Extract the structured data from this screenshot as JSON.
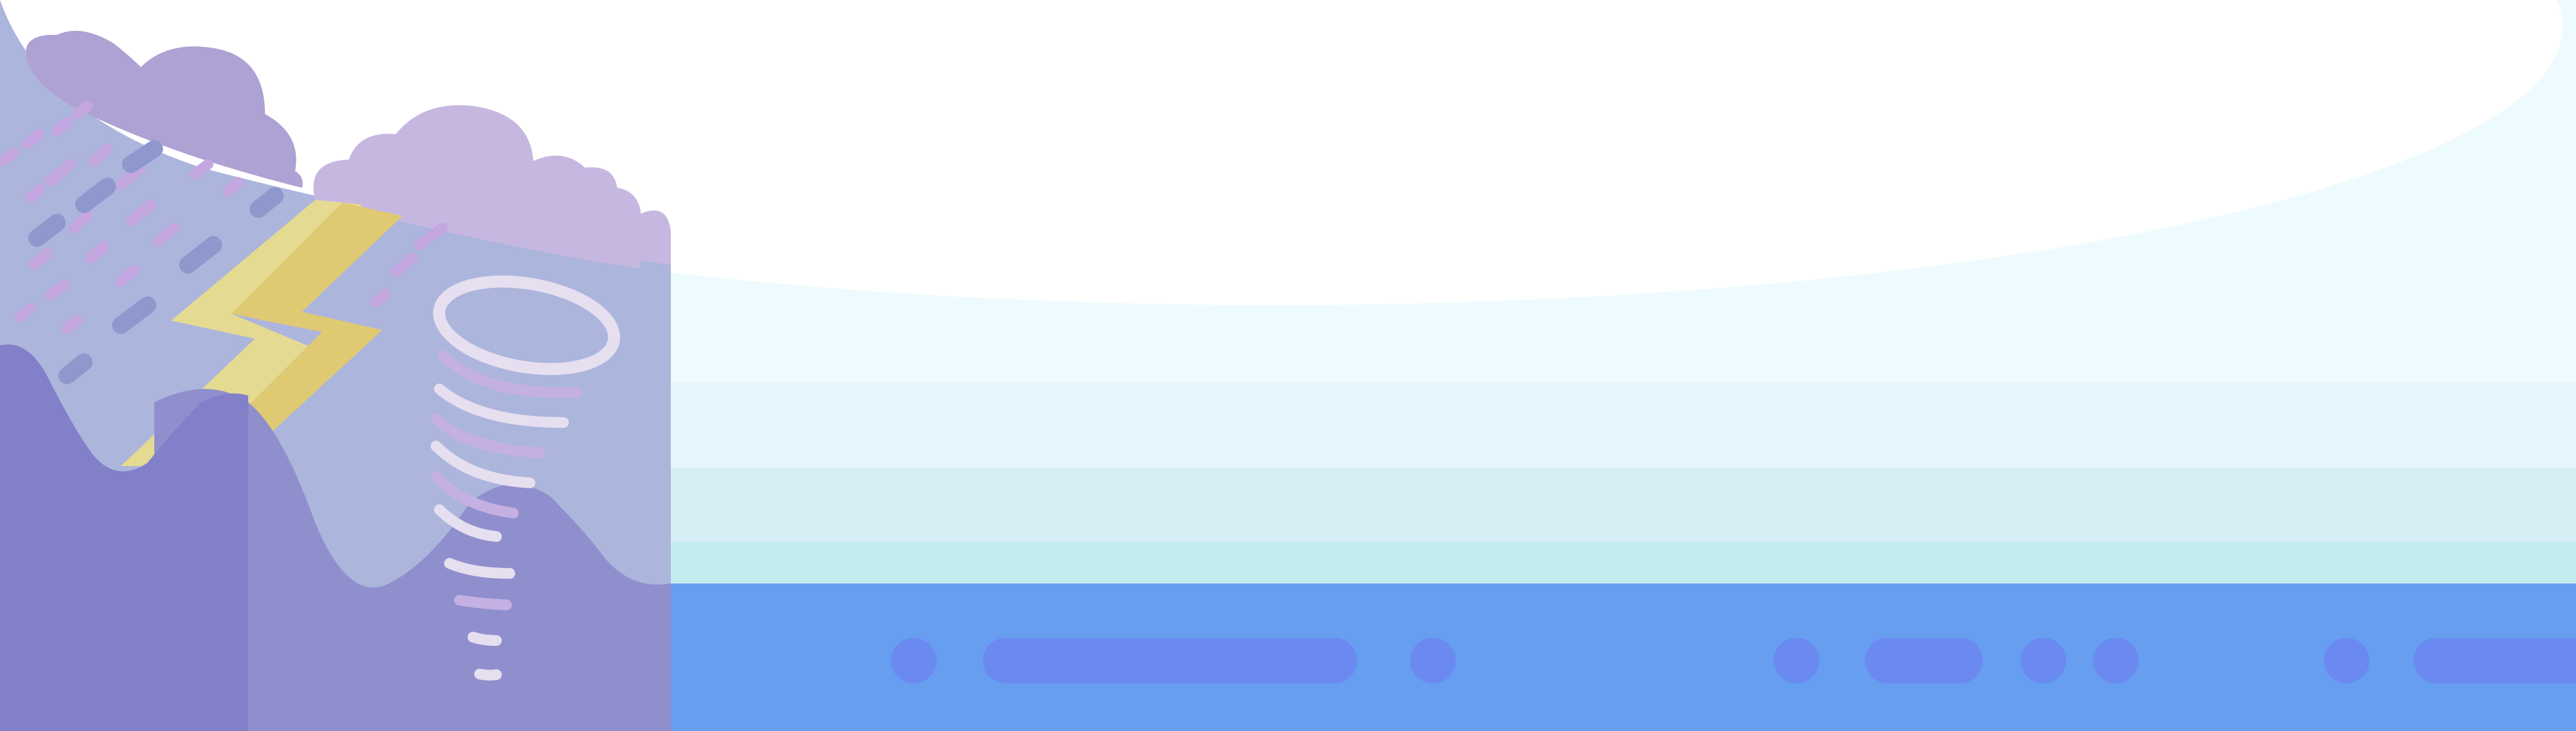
{
  "scene": {
    "description_visible_text": "",
    "colors": {
      "sky_top": "#ffffff",
      "sky_band_1": "#eefbfe",
      "sky_band_2": "#e4f6fb",
      "sky_band_3": "#d5eff5",
      "sky_band_4": "#c3ecf1",
      "water": "#679ef0",
      "water_dash": "#6a8af2",
      "panel_bg": "#acb5dc",
      "cloud_dark": "#aea2d4",
      "cloud_light": "#c6b7e1",
      "rain_dark": "#8f98cd",
      "rain_light": "#c4a7e0",
      "lightning_light": "#e4da92",
      "lightning_dark": "#dfc973",
      "hill_front": "#8180c8",
      "hill_back": "#8f8fce",
      "tornado_white": "#e5dff0",
      "tornado_purple": "#c5b0e3"
    },
    "icons": [
      "storm-cloud",
      "lightning-bolt",
      "tornado",
      "rain",
      "hills",
      "water-waves"
    ]
  }
}
